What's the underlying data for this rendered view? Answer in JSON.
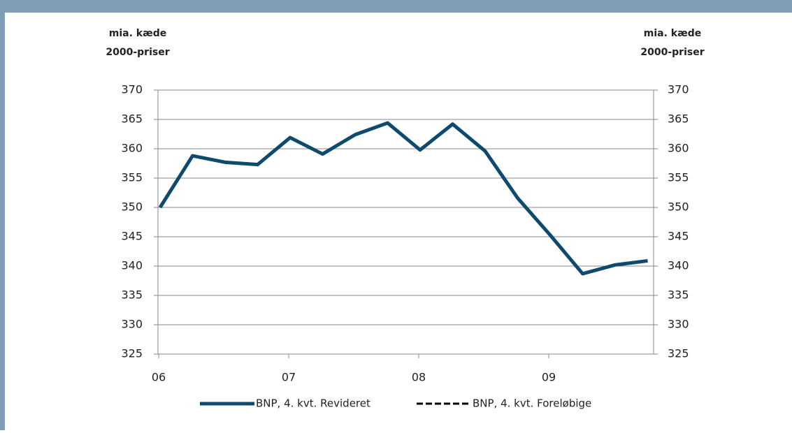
{
  "chart_data": {
    "type": "line",
    "y_label": [
      "mia. kæde",
      "2000-priser"
    ],
    "y2_label": [
      "mia. kæde",
      "2000-priser"
    ],
    "categories": [
      "06",
      null,
      null,
      null,
      "07",
      null,
      null,
      null,
      "08",
      null,
      null,
      null,
      "09",
      null,
      null,
      null
    ],
    "series": [
      {
        "name": "BNP, 4. kvt. Revideret",
        "color": "#0d4a6e",
        "dash": false,
        "values": [
          350,
          358.8,
          357.7,
          357.3,
          361.9,
          359.1,
          362.4,
          364.4,
          359.8,
          364.2,
          359.6,
          351.6,
          345.3,
          338.7,
          340.2,
          340.9
        ]
      },
      {
        "name": "BNP, 4. kvt. Foreløbige",
        "color": "#000000",
        "dash": true,
        "values": [
          null,
          null,
          null,
          null,
          null,
          null,
          null,
          null,
          null,
          null,
          null,
          null,
          null,
          null,
          null,
          null
        ]
      }
    ],
    "ylim": [
      325,
      370
    ],
    "yticks": [
      325,
      330,
      335,
      340,
      345,
      350,
      355,
      360,
      365,
      370
    ],
    "y2lim": [
      325,
      370
    ],
    "y2ticks": [
      325,
      330,
      335,
      340,
      345,
      350,
      355,
      360,
      365,
      370
    ],
    "grid": true,
    "legend": "bottom"
  }
}
